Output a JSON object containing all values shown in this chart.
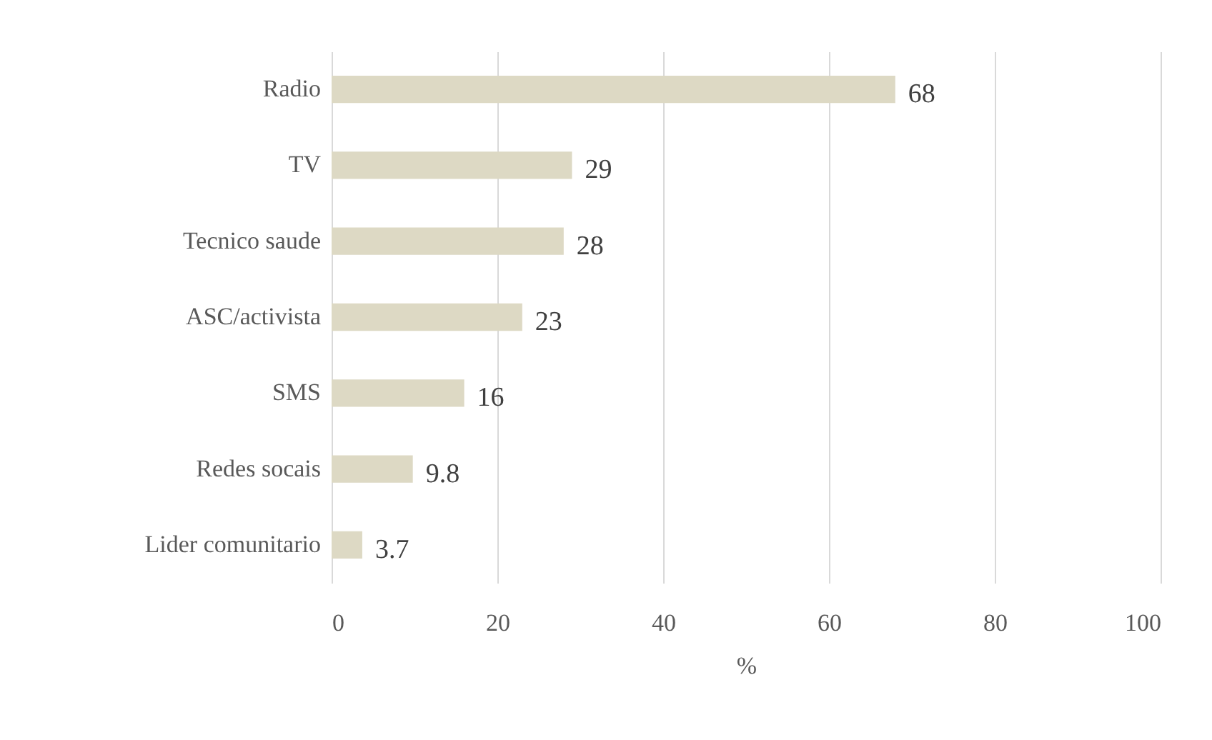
{
  "chart_data": {
    "type": "bar",
    "orientation": "horizontal",
    "xlabel": "%",
    "categories": [
      "Radio",
      "TV",
      "Tecnico saude",
      "ASC/activista",
      "SMS",
      "Redes socais",
      "Lider comunitario"
    ],
    "values": [
      68,
      29,
      28,
      23,
      16,
      9.8,
      3.7
    ],
    "color": "#ddd9c4",
    "xlim": [
      0,
      100
    ],
    "xticks": [
      0,
      20,
      40,
      60,
      80,
      100
    ],
    "grid": "x",
    "data_labels": true
  }
}
